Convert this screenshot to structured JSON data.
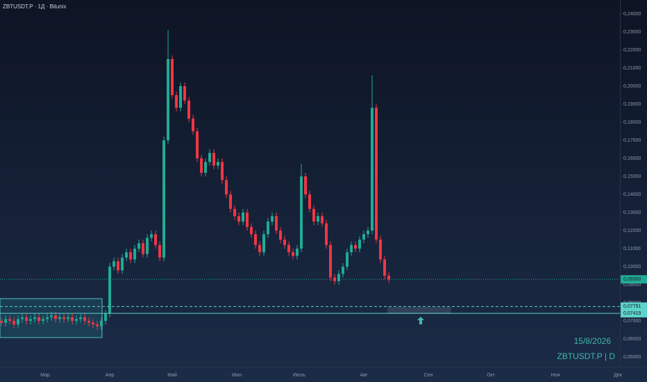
{
  "chart_data": {
    "type": "candlestick",
    "title": "ZBTUSDT.P · 1Д · Bitunix",
    "annotations": [
      "15/8/2026",
      "ZBTUSDT.P | D"
    ],
    "up_color": "#22ab94",
    "down_color": "#f23645",
    "grid": false,
    "xlim": [
      -21.7,
      276
    ],
    "xticks": [
      {
        "value": 0,
        "label": "Мар"
      },
      {
        "value": 31,
        "label": "Апр"
      },
      {
        "value": 61,
        "label": "Май"
      },
      {
        "value": 92,
        "label": "Июн"
      },
      {
        "value": 122,
        "label": "Июль"
      },
      {
        "value": 153,
        "label": "Авг"
      },
      {
        "value": 184,
        "label": "Сен"
      },
      {
        "value": 214,
        "label": "Окт"
      },
      {
        "value": 245,
        "label": "Ноя"
      },
      {
        "value": 275,
        "label": "Дек"
      }
    ],
    "ylim": [
      0.0446,
      0.2477
    ],
    "yticks": [
      {
        "value": 0.05,
        "label": "0,05000"
      },
      {
        "value": 0.06,
        "label": "0,06000"
      },
      {
        "value": 0.07,
        "label": "0,07000"
      },
      {
        "value": 0.08,
        "label": "0,08000"
      },
      {
        "value": 0.09,
        "label": "0,09000"
      },
      {
        "value": 0.1,
        "label": "0,10000"
      },
      {
        "value": 0.11,
        "label": "0,11000"
      },
      {
        "value": 0.12,
        "label": "0,12000"
      },
      {
        "value": 0.13,
        "label": "0,13000"
      },
      {
        "value": 0.14,
        "label": "0,14000"
      },
      {
        "value": 0.15,
        "label": "0,15000"
      },
      {
        "value": 0.16,
        "label": "0,16000"
      },
      {
        "value": 0.17,
        "label": "0,17000"
      },
      {
        "value": 0.18,
        "label": "0,18000"
      },
      {
        "value": 0.19,
        "label": "0,19000"
      },
      {
        "value": 0.2,
        "label": "0,20000"
      },
      {
        "value": 0.21,
        "label": "0,21000"
      },
      {
        "value": 0.22,
        "label": "0,22000"
      },
      {
        "value": 0.23,
        "label": "0,23000"
      },
      {
        "value": 0.24,
        "label": "0,24000"
      }
    ],
    "price_lines": [
      {
        "value": 0.093,
        "label": "0,09300",
        "color": "#22ab94",
        "style": "dotted"
      },
      {
        "value": 0.07791,
        "label": "0,07791",
        "color": "#5ed3c8",
        "style": "dashed"
      },
      {
        "value": 0.07419,
        "label": "0,07419",
        "color": "#5ed3c8",
        "style": "solid"
      }
    ],
    "x": [
      -21,
      -19,
      -17,
      -15,
      -13,
      -11,
      -9,
      -7,
      -5,
      -3,
      -1,
      1,
      3,
      5,
      7,
      9,
      11,
      13,
      15,
      17,
      19,
      21,
      23,
      25,
      27,
      29,
      31,
      33,
      35,
      37,
      39,
      41,
      43,
      45,
      47,
      49,
      51,
      53,
      55,
      57,
      59,
      61,
      63,
      65,
      67,
      69,
      71,
      73,
      75,
      77,
      79,
      81,
      83,
      85,
      87,
      89,
      91,
      93,
      95,
      97,
      99,
      101,
      103,
      105,
      107,
      109,
      111,
      113,
      115,
      117,
      119,
      121,
      123,
      125,
      127,
      129,
      131,
      133,
      135,
      137,
      139,
      141,
      143,
      145,
      147,
      149,
      151,
      153,
      155,
      157,
      159,
      161,
      163,
      165
    ],
    "open": [
      0.07,
      0.069,
      0.071,
      0.07,
      0.068,
      0.071,
      0.072,
      0.07,
      0.071,
      0.072,
      0.07,
      0.071,
      0.072,
      0.073,
      0.071,
      0.072,
      0.071,
      0.072,
      0.07,
      0.071,
      0.072,
      0.07,
      0.069,
      0.068,
      0.067,
      0.07,
      0.074,
      0.1,
      0.103,
      0.098,
      0.105,
      0.108,
      0.104,
      0.11,
      0.113,
      0.107,
      0.116,
      0.118,
      0.112,
      0.105,
      0.17,
      0.215,
      0.195,
      0.188,
      0.2,
      0.192,
      0.182,
      0.175,
      0.16,
      0.152,
      0.158,
      0.163,
      0.156,
      0.158,
      0.148,
      0.14,
      0.132,
      0.128,
      0.125,
      0.13,
      0.122,
      0.118,
      0.112,
      0.108,
      0.118,
      0.125,
      0.128,
      0.12,
      0.115,
      0.112,
      0.108,
      0.106,
      0.11,
      0.15,
      0.14,
      0.132,
      0.125,
      0.128,
      0.124,
      0.112,
      0.094,
      0.092,
      0.096,
      0.1,
      0.108,
      0.112,
      0.11,
      0.115,
      0.118,
      0.12,
      0.188,
      0.115,
      0.104,
      0.095
    ],
    "high": [
      0.072,
      0.073,
      0.073,
      0.072,
      0.073,
      0.074,
      0.074,
      0.073,
      0.074,
      0.074,
      0.073,
      0.074,
      0.075,
      0.075,
      0.074,
      0.074,
      0.074,
      0.074,
      0.073,
      0.074,
      0.074,
      0.072,
      0.071,
      0.07,
      0.072,
      0.076,
      0.102,
      0.105,
      0.105,
      0.107,
      0.11,
      0.11,
      0.112,
      0.115,
      0.115,
      0.118,
      0.12,
      0.12,
      0.114,
      0.172,
      0.231,
      0.217,
      0.197,
      0.202,
      0.202,
      0.194,
      0.184,
      0.177,
      0.162,
      0.16,
      0.165,
      0.165,
      0.16,
      0.16,
      0.15,
      0.142,
      0.134,
      0.13,
      0.132,
      0.132,
      0.124,
      0.12,
      0.114,
      0.12,
      0.127,
      0.13,
      0.13,
      0.122,
      0.117,
      0.114,
      0.11,
      0.112,
      0.157,
      0.152,
      0.142,
      0.134,
      0.13,
      0.13,
      0.126,
      0.114,
      0.096,
      0.098,
      0.102,
      0.11,
      0.114,
      0.114,
      0.117,
      0.12,
      0.122,
      0.206,
      0.19,
      0.117,
      0.106,
      0.097
    ],
    "low": [
      0.067,
      0.067,
      0.068,
      0.066,
      0.066,
      0.069,
      0.068,
      0.068,
      0.069,
      0.068,
      0.068,
      0.069,
      0.07,
      0.069,
      0.069,
      0.069,
      0.069,
      0.068,
      0.068,
      0.069,
      0.068,
      0.067,
      0.066,
      0.065,
      0.065,
      0.068,
      0.072,
      0.098,
      0.096,
      0.096,
      0.103,
      0.102,
      0.102,
      0.108,
      0.105,
      0.105,
      0.114,
      0.11,
      0.103,
      0.103,
      0.168,
      0.193,
      0.186,
      0.186,
      0.19,
      0.18,
      0.173,
      0.158,
      0.15,
      0.15,
      0.156,
      0.154,
      0.154,
      0.146,
      0.138,
      0.13,
      0.126,
      0.123,
      0.123,
      0.12,
      0.116,
      0.11,
      0.106,
      0.106,
      0.116,
      0.123,
      0.118,
      0.113,
      0.11,
      0.106,
      0.104,
      0.104,
      0.108,
      0.138,
      0.13,
      0.123,
      0.123,
      0.122,
      0.11,
      0.092,
      0.09,
      0.09,
      0.094,
      0.098,
      0.106,
      0.108,
      0.108,
      0.113,
      0.116,
      0.118,
      0.113,
      0.102,
      0.093,
      0.091
    ],
    "close": [
      0.069,
      0.071,
      0.07,
      0.068,
      0.071,
      0.072,
      0.07,
      0.071,
      0.072,
      0.07,
      0.071,
      0.072,
      0.073,
      0.071,
      0.072,
      0.071,
      0.072,
      0.07,
      0.071,
      0.072,
      0.07,
      0.069,
      0.068,
      0.067,
      0.07,
      0.074,
      0.1,
      0.103,
      0.098,
      0.105,
      0.108,
      0.104,
      0.11,
      0.113,
      0.107,
      0.116,
      0.118,
      0.112,
      0.105,
      0.17,
      0.215,
      0.195,
      0.188,
      0.2,
      0.192,
      0.182,
      0.175,
      0.16,
      0.152,
      0.158,
      0.163,
      0.156,
      0.158,
      0.148,
      0.14,
      0.132,
      0.128,
      0.125,
      0.13,
      0.122,
      0.118,
      0.112,
      0.108,
      0.118,
      0.125,
      0.128,
      0.12,
      0.115,
      0.112,
      0.108,
      0.106,
      0.11,
      0.15,
      0.14,
      0.132,
      0.125,
      0.128,
      0.124,
      0.112,
      0.094,
      0.092,
      0.096,
      0.1,
      0.108,
      0.112,
      0.11,
      0.115,
      0.118,
      0.12,
      0.188,
      0.115,
      0.104,
      0.095,
      0.093
    ]
  }
}
